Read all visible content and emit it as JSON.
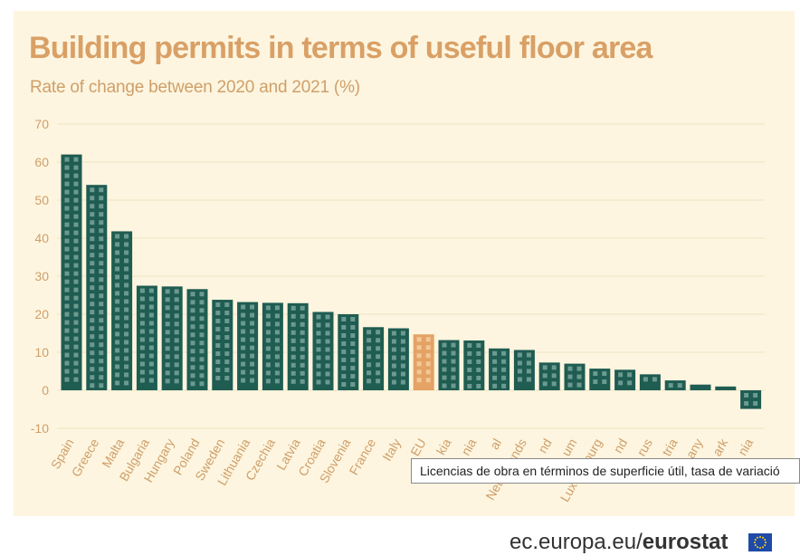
{
  "colors": {
    "background": "#fdf5df",
    "bar": "#1f5c52",
    "bar_window": "#6b9a90",
    "highlight_bar": "#e4a264",
    "highlight_window": "#f3c898",
    "axis_text": "#cf9f6a",
    "gridline": "#efe2c4"
  },
  "tooltip": {
    "text": "Licencias de obra en términos de superficie útil, tasa de variació"
  },
  "footer": {
    "url": "ec.europa.eu/",
    "brand": "eurostat",
    "logo_icon": "eu-flag-icon"
  },
  "chart_data": {
    "type": "bar",
    "title": "Building permits in terms of useful floor area",
    "subtitle": "Rate of change between 2020 and 2021 (%)",
    "xlabel": "",
    "ylabel": "",
    "ylim": [
      -10,
      70
    ],
    "yticks": [
      -10,
      0,
      10,
      20,
      30,
      40,
      50,
      60,
      70
    ],
    "grid": true,
    "legend": "none",
    "categories": [
      "Spain",
      "Greece",
      "Malta",
      "Bulgaria",
      "Hungary",
      "Poland",
      "Sweden",
      "Lithuania",
      "Czechia",
      "Latvia",
      "Croatia",
      "Slovenia",
      "France",
      "Italy",
      "EU",
      "kia",
      "nia",
      "al",
      "Netherlands",
      "nd",
      "um",
      "Luxembourg",
      "nd",
      "rus",
      "tria",
      "any",
      "ark",
      "nia"
    ],
    "values": [
      62,
      54,
      41.8,
      27.5,
      27.3,
      26.6,
      23.8,
      23.2,
      23.0,
      22.9,
      20.6,
      20.0,
      16.6,
      16.3,
      14.7,
      13.2,
      13.1,
      11.0,
      10.6,
      7.3,
      7.0,
      5.7,
      5.4,
      4.2,
      2.6,
      1.5,
      1.0,
      -4.9
    ],
    "highlight": [
      "EU"
    ]
  }
}
